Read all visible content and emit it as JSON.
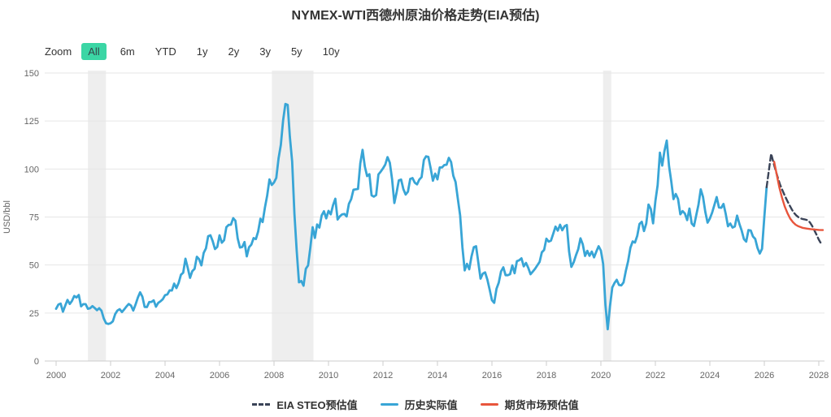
{
  "title": "NYMEX-WTI西德州原油价格走势(EIA预估)",
  "toolbar": {
    "zoom_label": "Zoom",
    "buttons": [
      "All",
      "6m",
      "YTD",
      "1y",
      "2y",
      "3y",
      "5y",
      "10y"
    ],
    "selected": "All",
    "selected_bg": "#3bd6a5"
  },
  "legend": [
    {
      "label": "EIA STEO预估值",
      "color": "#3a4357",
      "style": "dashed"
    },
    {
      "label": "历史实际值",
      "color": "#38a5d6",
      "style": "solid"
    },
    {
      "label": "期货市场预估值",
      "color": "#e8553c",
      "style": "solid"
    }
  ],
  "colors": {
    "historical": "#38a5d6",
    "eia_forecast": "#3a4357",
    "futures_forecast": "#e8553c",
    "plot_band": "#eeeeee",
    "gridline": "#e6e6e6",
    "axis_line": "#cccccc",
    "axis_text": "#666666",
    "title_text": "#333333"
  },
  "chart_data": {
    "type": "line",
    "title": "NYMEX-WTI西德州原油价格走势(EIA预估)",
    "xlabel": "",
    "ylabel": "USD/bbl",
    "ylim": [
      0,
      150
    ],
    "xlim": [
      2000,
      2028.3
    ],
    "y_ticks": [
      0,
      25,
      50,
      75,
      100,
      125,
      150
    ],
    "x_ticks": [
      2000,
      2002,
      2004,
      2006,
      2008,
      2010,
      2012,
      2014,
      2016,
      2018,
      2020,
      2022,
      2024,
      2026,
      2028
    ],
    "grid": "horizontal",
    "legend_position": "bottom",
    "plot_bands": [
      [
        2001.17,
        2001.83
      ],
      [
        2007.92,
        2009.45
      ],
      [
        2020.08,
        2020.38
      ]
    ],
    "series": [
      {
        "name": "历史实际值",
        "color": "#38a5d6",
        "style": "solid",
        "x_start": 2000.0,
        "x_step_months": 1,
        "values": [
          27.2,
          29.4,
          29.9,
          25.7,
          28.8,
          31.8,
          29.7,
          31.3,
          33.9,
          33.1,
          34.4,
          28.5,
          29.6,
          29.6,
          27.2,
          27.5,
          28.6,
          27.6,
          26.5,
          27.5,
          26.2,
          22.2,
          19.7,
          19.3,
          19.7,
          20.7,
          24.4,
          26.3,
          27.0,
          25.5,
          26.9,
          28.4,
          29.7,
          28.9,
          26.3,
          29.4,
          33.0,
          35.8,
          33.5,
          28.2,
          28.1,
          30.7,
          30.8,
          31.6,
          28.3,
          30.3,
          31.1,
          32.2,
          34.3,
          34.7,
          36.8,
          36.7,
          40.3,
          38.0,
          40.8,
          44.9,
          46.0,
          53.3,
          48.5,
          43.3,
          46.8,
          48.0,
          54.3,
          53.0,
          49.8,
          56.3,
          58.7,
          65.0,
          65.5,
          62.4,
          58.3,
          59.4,
          65.5,
          61.6,
          62.9,
          69.7,
          70.9,
          71.0,
          74.4,
          73.1,
          63.9,
          59.1,
          59.4,
          62.0,
          54.5,
          59.3,
          60.6,
          64.0,
          63.5,
          67.5,
          74.1,
          72.4,
          79.9,
          86.2,
          94.6,
          91.7,
          93.0,
          95.4,
          105.6,
          112.6,
          125.4,
          133.9,
          133.4,
          116.7,
          103.9,
          76.7,
          57.4,
          41.0,
          41.7,
          39.2,
          48.0,
          49.8,
          59.2,
          69.7,
          64.1,
          71.1,
          69.5,
          75.8,
          78.0,
          74.3,
          78.2,
          76.4,
          81.2,
          84.5,
          73.7,
          75.4,
          76.4,
          76.6,
          75.3,
          81.9,
          84.3,
          89.2,
          89.4,
          89.6,
          102.9,
          110.0,
          101.3,
          96.3,
          97.3,
          86.3,
          85.6,
          86.4,
          97.2,
          98.6,
          100.3,
          102.3,
          106.2,
          103.3,
          94.7,
          82.3,
          87.9,
          94.1,
          94.5,
          89.5,
          86.7,
          88.2,
          94.8,
          95.3,
          92.9,
          92.0,
          94.5,
          95.8,
          104.7,
          106.6,
          106.3,
          100.5,
          93.9,
          97.6,
          94.6,
          100.8,
          100.8,
          102.1,
          102.2,
          105.8,
          103.6,
          96.5,
          93.2,
          84.4,
          75.8,
          59.3,
          47.2,
          50.6,
          47.8,
          54.5,
          59.3,
          59.8,
          51.2,
          42.9,
          45.5,
          46.2,
          42.4,
          37.2,
          31.7,
          30.3,
          37.6,
          40.8,
          46.7,
          48.8,
          44.7,
          44.7,
          45.2,
          49.8,
          45.7,
          52.0,
          52.5,
          53.5,
          49.3,
          51.1,
          48.5,
          45.2,
          46.6,
          48.0,
          49.8,
          51.6,
          56.6,
          57.9,
          63.7,
          62.2,
          62.7,
          66.3,
          70.0,
          67.9,
          71.0,
          68.1,
          70.2,
          70.8,
          57.0,
          49.0,
          51.4,
          55.0,
          58.2,
          63.9,
          60.8,
          54.7,
          57.4,
          54.8,
          57.0,
          54.0,
          57.0,
          59.8,
          57.5,
          50.5,
          29.2,
          16.5,
          28.6,
          38.3,
          40.7,
          42.3,
          39.6,
          39.4,
          41.0,
          47.0,
          52.0,
          59.0,
          62.3,
          61.7,
          65.2,
          71.4,
          72.5,
          67.7,
          71.6,
          81.5,
          79.2,
          71.7,
          83.2,
          91.6,
          108.5,
          101.8,
          109.5,
          114.8,
          101.6,
          93.7,
          84.3,
          87.0,
          84.4,
          76.4,
          78.1,
          76.8,
          73.4,
          79.4,
          71.6,
          70.3,
          76.0,
          81.4,
          89.4,
          85.5,
          77.7,
          72.1,
          74.2,
          77.3,
          81.3,
          85.4,
          80.0,
          79.8,
          81.8,
          76.7,
          70.2,
          71.6,
          69.5,
          70.1,
          75.7,
          71.5,
          68.0,
          63.5,
          62.2,
          68.2,
          68.0,
          64.9,
          63.6,
          58.9,
          56.0,
          58.5,
          75.0,
          90.5
        ]
      },
      {
        "name": "EIA STEO预估值",
        "color": "#3a4357",
        "style": "dashed",
        "points": [
          [
            2026.083,
            90.5
          ],
          [
            2026.25,
            108.0
          ],
          [
            2026.33,
            103.5
          ],
          [
            2026.42,
            99.0
          ],
          [
            2026.5,
            95.2
          ],
          [
            2026.58,
            91.8
          ],
          [
            2026.67,
            88.8
          ],
          [
            2026.75,
            86.2
          ],
          [
            2026.83,
            83.8
          ],
          [
            2026.92,
            81.3
          ],
          [
            2027.0,
            79.2
          ],
          [
            2027.08,
            77.3
          ],
          [
            2027.17,
            75.9
          ],
          [
            2027.25,
            74.9
          ],
          [
            2027.33,
            74.3
          ],
          [
            2027.42,
            73.9
          ],
          [
            2027.5,
            73.7
          ],
          [
            2027.58,
            73.4
          ],
          [
            2027.67,
            72.3
          ],
          [
            2027.75,
            70.5
          ],
          [
            2027.83,
            68.3
          ],
          [
            2027.92,
            65.7
          ],
          [
            2028.0,
            63.2
          ],
          [
            2028.1,
            60.8
          ]
        ]
      },
      {
        "name": "期货市场预估值",
        "color": "#e8553c",
        "style": "solid",
        "points": [
          [
            2026.36,
            103.8
          ],
          [
            2026.45,
            97.5
          ],
          [
            2026.55,
            90.5
          ],
          [
            2026.65,
            85.0
          ],
          [
            2026.75,
            80.5
          ],
          [
            2026.85,
            77.0
          ],
          [
            2026.95,
            74.2
          ],
          [
            2027.05,
            72.3
          ],
          [
            2027.15,
            71.0
          ],
          [
            2027.25,
            70.2
          ],
          [
            2027.4,
            69.4
          ],
          [
            2027.55,
            69.0
          ],
          [
            2027.7,
            68.7
          ],
          [
            2027.85,
            68.5
          ],
          [
            2028.0,
            68.3
          ],
          [
            2028.15,
            68.2
          ]
        ]
      }
    ]
  }
}
